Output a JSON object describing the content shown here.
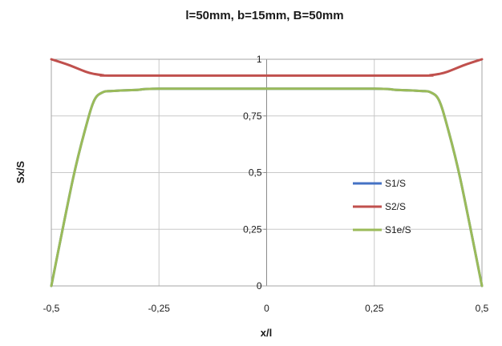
{
  "chart_data": {
    "type": "line",
    "title": "l=50mm, b=15mm, B=50mm",
    "xlabel": "x/l",
    "ylabel": "Sx/S",
    "xlim": [
      -0.5,
      0.5
    ],
    "ylim": [
      0,
      1
    ],
    "x_ticks": [
      "-0,5",
      "-0,25",
      "0",
      "0,25",
      "0,5"
    ],
    "y_ticks": [
      "0",
      "0,25",
      "0,5",
      "0,75",
      "1"
    ],
    "grid": true,
    "legend_position": "right",
    "series": [
      {
        "name": "S1/S",
        "color": "#4472c4",
        "x": [
          -0.5,
          -0.45,
          -0.42,
          -0.4,
          -0.38,
          -0.36,
          -0.34,
          -0.3,
          -0.25,
          0,
          0.25,
          0.3,
          0.34,
          0.36,
          0.38,
          0.4,
          0.42,
          0.45,
          0.5
        ],
        "y": [
          0,
          0.47,
          0.7,
          0.82,
          0.855,
          0.86,
          0.862,
          0.865,
          0.87,
          0.87,
          0.87,
          0.865,
          0.862,
          0.86,
          0.855,
          0.82,
          0.7,
          0.47,
          0
        ]
      },
      {
        "name": "S2/S",
        "color": "#c0504d",
        "x": [
          -0.5,
          -0.46,
          -0.42,
          -0.4,
          -0.38,
          -0.35,
          0,
          0.35,
          0.38,
          0.4,
          0.42,
          0.46,
          0.5
        ],
        "y": [
          1,
          0.975,
          0.945,
          0.935,
          0.93,
          0.928,
          0.928,
          0.928,
          0.93,
          0.935,
          0.945,
          0.975,
          1
        ]
      },
      {
        "name": "S1e/S",
        "color": "#9bbb59",
        "x": [
          -0.5,
          -0.45,
          -0.42,
          -0.4,
          -0.38,
          -0.36,
          -0.34,
          -0.3,
          -0.25,
          0,
          0.25,
          0.3,
          0.34,
          0.36,
          0.38,
          0.4,
          0.42,
          0.45,
          0.5
        ],
        "y": [
          0,
          0.47,
          0.7,
          0.82,
          0.855,
          0.86,
          0.862,
          0.865,
          0.87,
          0.87,
          0.87,
          0.865,
          0.862,
          0.86,
          0.855,
          0.82,
          0.7,
          0.47,
          0
        ]
      }
    ]
  }
}
